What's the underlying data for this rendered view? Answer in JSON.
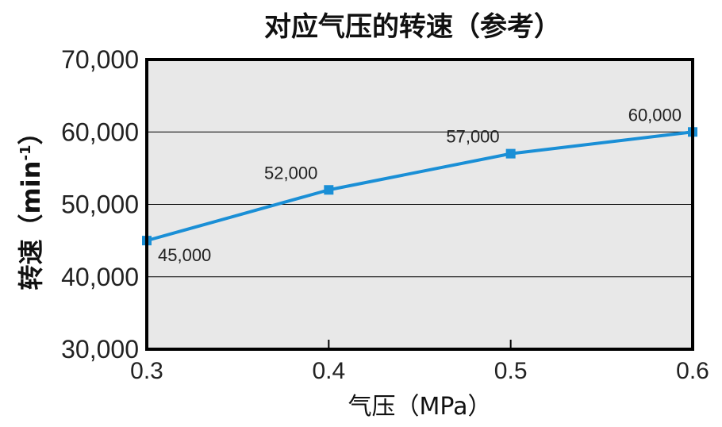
{
  "chart_data": {
    "type": "line",
    "title": "对应气压的转速（参考）",
    "xlabel": "气压（MPa）",
    "ylabel": "转速（min-1）",
    "ylabel_main": "转速（min",
    "ylabel_sup": "-1",
    "ylabel_end": "）",
    "x": [
      0.3,
      0.4,
      0.5,
      0.6
    ],
    "x_tick_labels": [
      "0.3",
      "0.4",
      "0.5",
      "0.6"
    ],
    "y_tick_values": [
      30000,
      40000,
      50000,
      60000,
      70000
    ],
    "y_tick_labels": [
      "30,000",
      "40,000",
      "50,000",
      "60,000",
      "70,000"
    ],
    "series": [
      {
        "values": [
          45000,
          52000,
          57000,
          60000
        ],
        "data_labels": [
          "45,000",
          "52,000",
          "57,000",
          "60,000"
        ]
      }
    ],
    "xlim": [
      0.3,
      0.6
    ],
    "ylim": [
      30000,
      70000
    ],
    "grid": "horizontal",
    "colors": {
      "line": "#1a8fd6",
      "plot_bg": "#e8e8e8",
      "frame": "#000000"
    }
  }
}
